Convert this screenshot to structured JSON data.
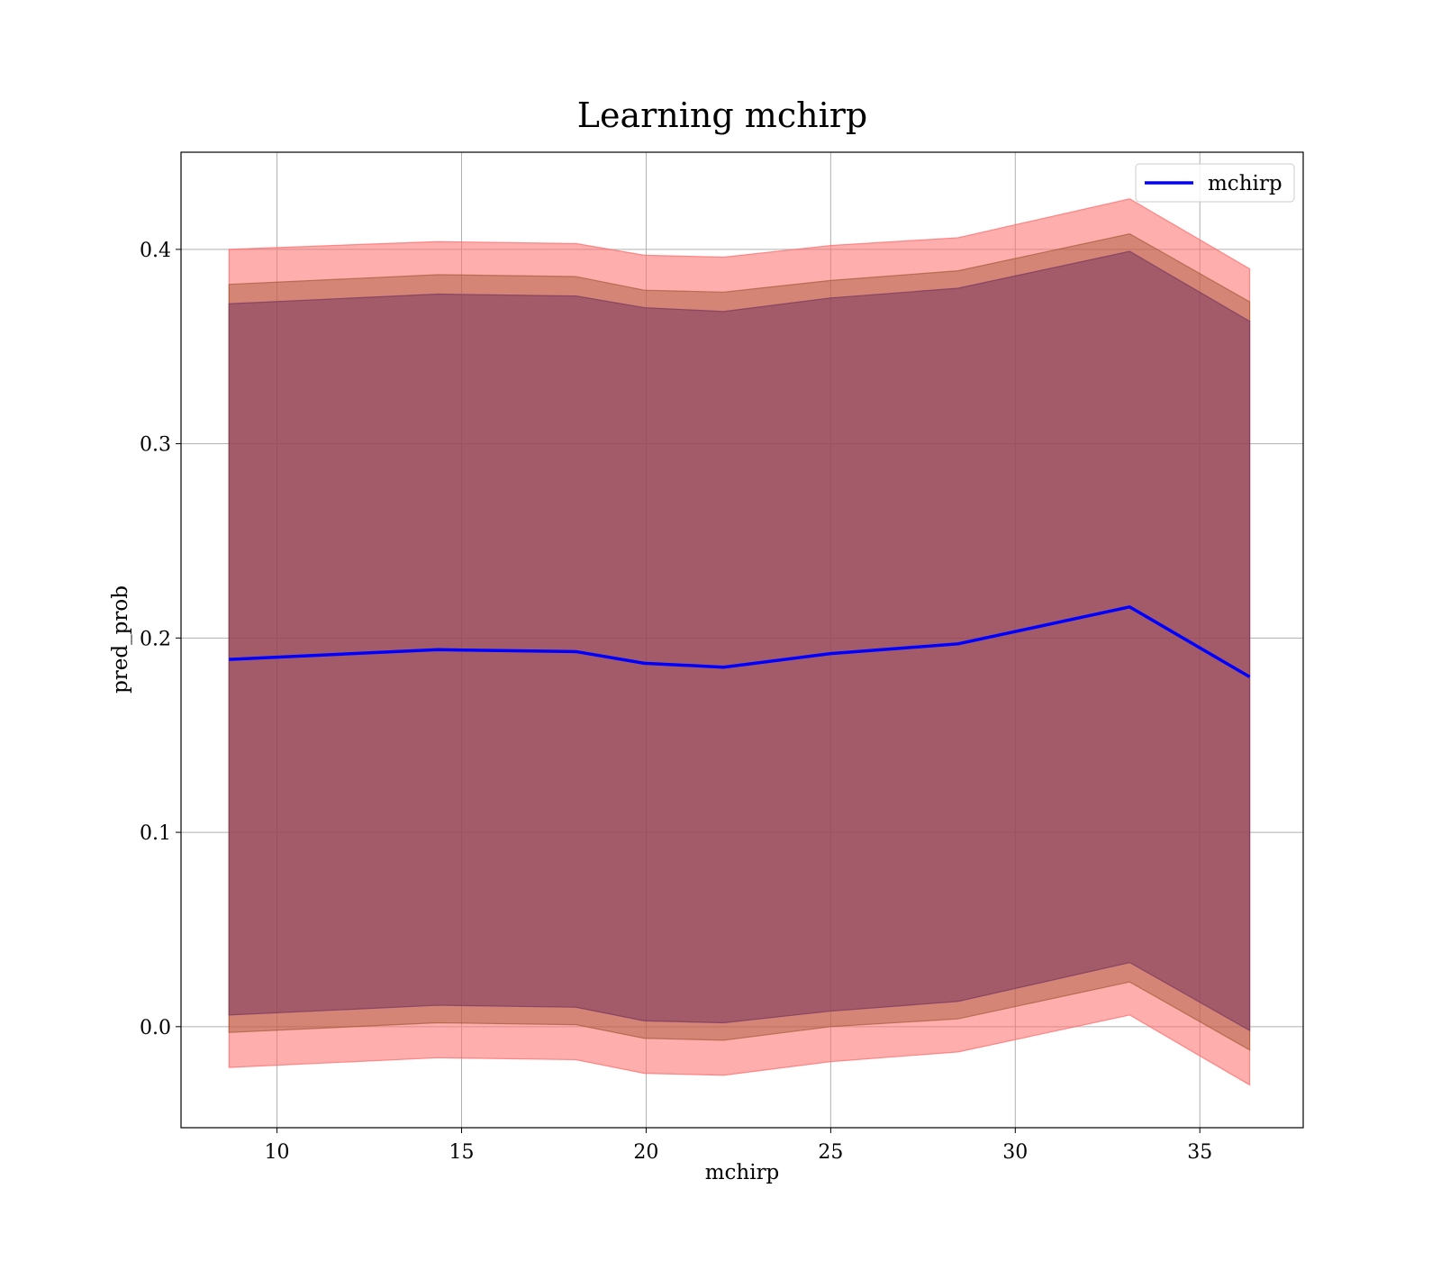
{
  "chart_data": {
    "type": "area",
    "title": "Learning mchirp",
    "xlabel": "mchirp",
    "ylabel": "pred_prob",
    "xlim": [
      7.4,
      37.8
    ],
    "ylim": [
      -0.052,
      0.45
    ],
    "xticks": [
      10,
      15,
      20,
      25,
      30,
      35
    ],
    "xtick_labels": [
      "10",
      "15",
      "20",
      "25",
      "30",
      "35"
    ],
    "yticks": [
      0.0,
      0.1,
      0.2,
      0.3,
      0.4
    ],
    "ytick_labels": [
      "0.0",
      "0.1",
      "0.2",
      "0.3",
      "0.4"
    ],
    "grid": true,
    "legend": {
      "position": "top-right",
      "entries": [
        "mchirp"
      ]
    },
    "x": [
      8.7,
      14.35,
      18.1,
      19.95,
      22.1,
      25.0,
      28.45,
      33.1,
      36.35
    ],
    "series": [
      {
        "name": "mchirp",
        "color": "#0000ff",
        "values": [
          0.189,
          0.194,
          0.193,
          0.187,
          0.185,
          0.192,
          0.197,
          0.216,
          0.18
        ]
      }
    ],
    "bands": [
      {
        "color": "#ff6b6b",
        "opacity": 0.55,
        "lower": [
          -0.021,
          -0.016,
          -0.017,
          -0.024,
          -0.025,
          -0.018,
          -0.013,
          0.006,
          -0.03
        ],
        "upper": [
          0.4,
          0.404,
          0.403,
          0.397,
          0.396,
          0.402,
          0.406,
          0.426,
          0.39
        ]
      },
      {
        "color": "#a05530",
        "opacity": 0.45,
        "lower": [
          -0.003,
          0.002,
          0.001,
          -0.006,
          -0.007,
          0.0,
          0.004,
          0.023,
          -0.012
        ],
        "upper": [
          0.382,
          0.387,
          0.386,
          0.379,
          0.378,
          0.384,
          0.389,
          0.408,
          0.373
        ]
      },
      {
        "color": "#7a3860",
        "opacity": 0.55,
        "lower": [
          0.006,
          0.011,
          0.01,
          0.003,
          0.002,
          0.008,
          0.013,
          0.033,
          -0.002
        ],
        "upper": [
          0.372,
          0.377,
          0.376,
          0.37,
          0.368,
          0.375,
          0.38,
          0.399,
          0.363
        ]
      }
    ]
  }
}
